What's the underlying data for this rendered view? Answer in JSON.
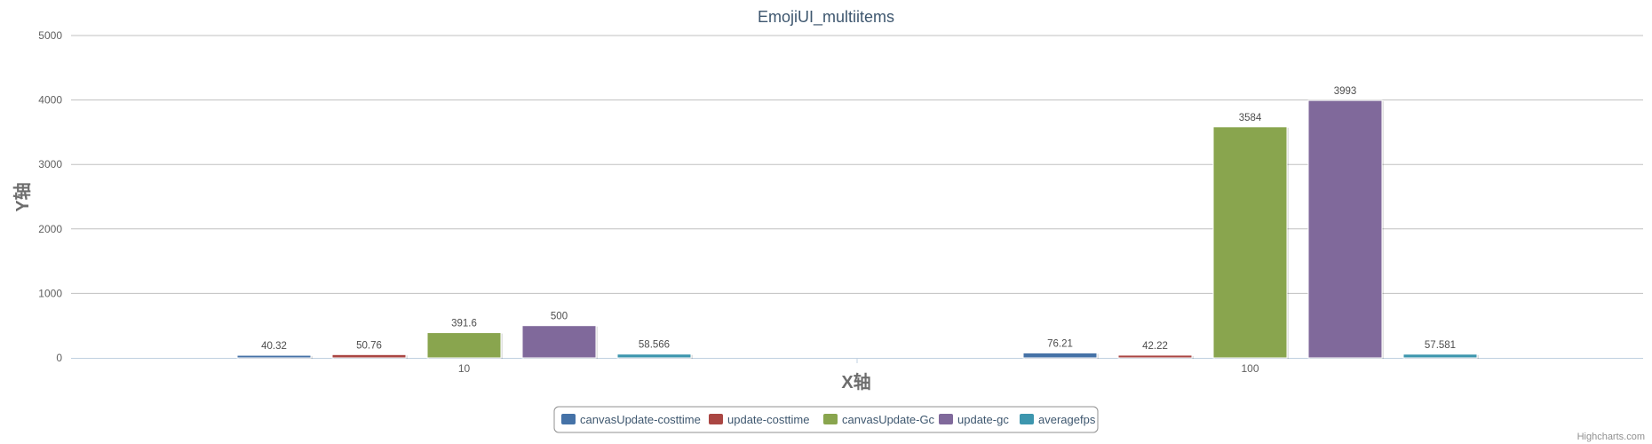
{
  "chart_data": {
    "type": "bar",
    "title": "EmojiUI_multiitems",
    "xlabel": "X轴",
    "ylabel": "Y轴",
    "categories": [
      "10",
      "100"
    ],
    "ylim": [
      0,
      5000
    ],
    "yticks": [
      0,
      1000,
      2000,
      3000,
      4000,
      5000
    ],
    "grid": true,
    "legend_position": "bottom-center",
    "series": [
      {
        "name": "canvasUpdate-costtime",
        "color": "#4572a7",
        "values": [
          40.32,
          76.21
        ],
        "labels": [
          "40.32",
          "76.21"
        ]
      },
      {
        "name": "update-costtime",
        "color": "#aa4643",
        "values": [
          50.76,
          42.22
        ],
        "labels": [
          "50.76",
          "42.22"
        ]
      },
      {
        "name": "canvasUpdate-Gc",
        "color": "#89a54e",
        "values": [
          391.6,
          3584
        ],
        "labels": [
          "391.6",
          "3584"
        ]
      },
      {
        "name": "update-gc",
        "color": "#80699b",
        "values": [
          500,
          3993
        ],
        "labels": [
          "500",
          "3993"
        ]
      },
      {
        "name": "averagefps",
        "color": "#3d96ae",
        "values": [
          58.566,
          57.581
        ],
        "labels": [
          "58.566",
          "57.581"
        ]
      }
    ]
  },
  "credits": "Highcharts.com"
}
